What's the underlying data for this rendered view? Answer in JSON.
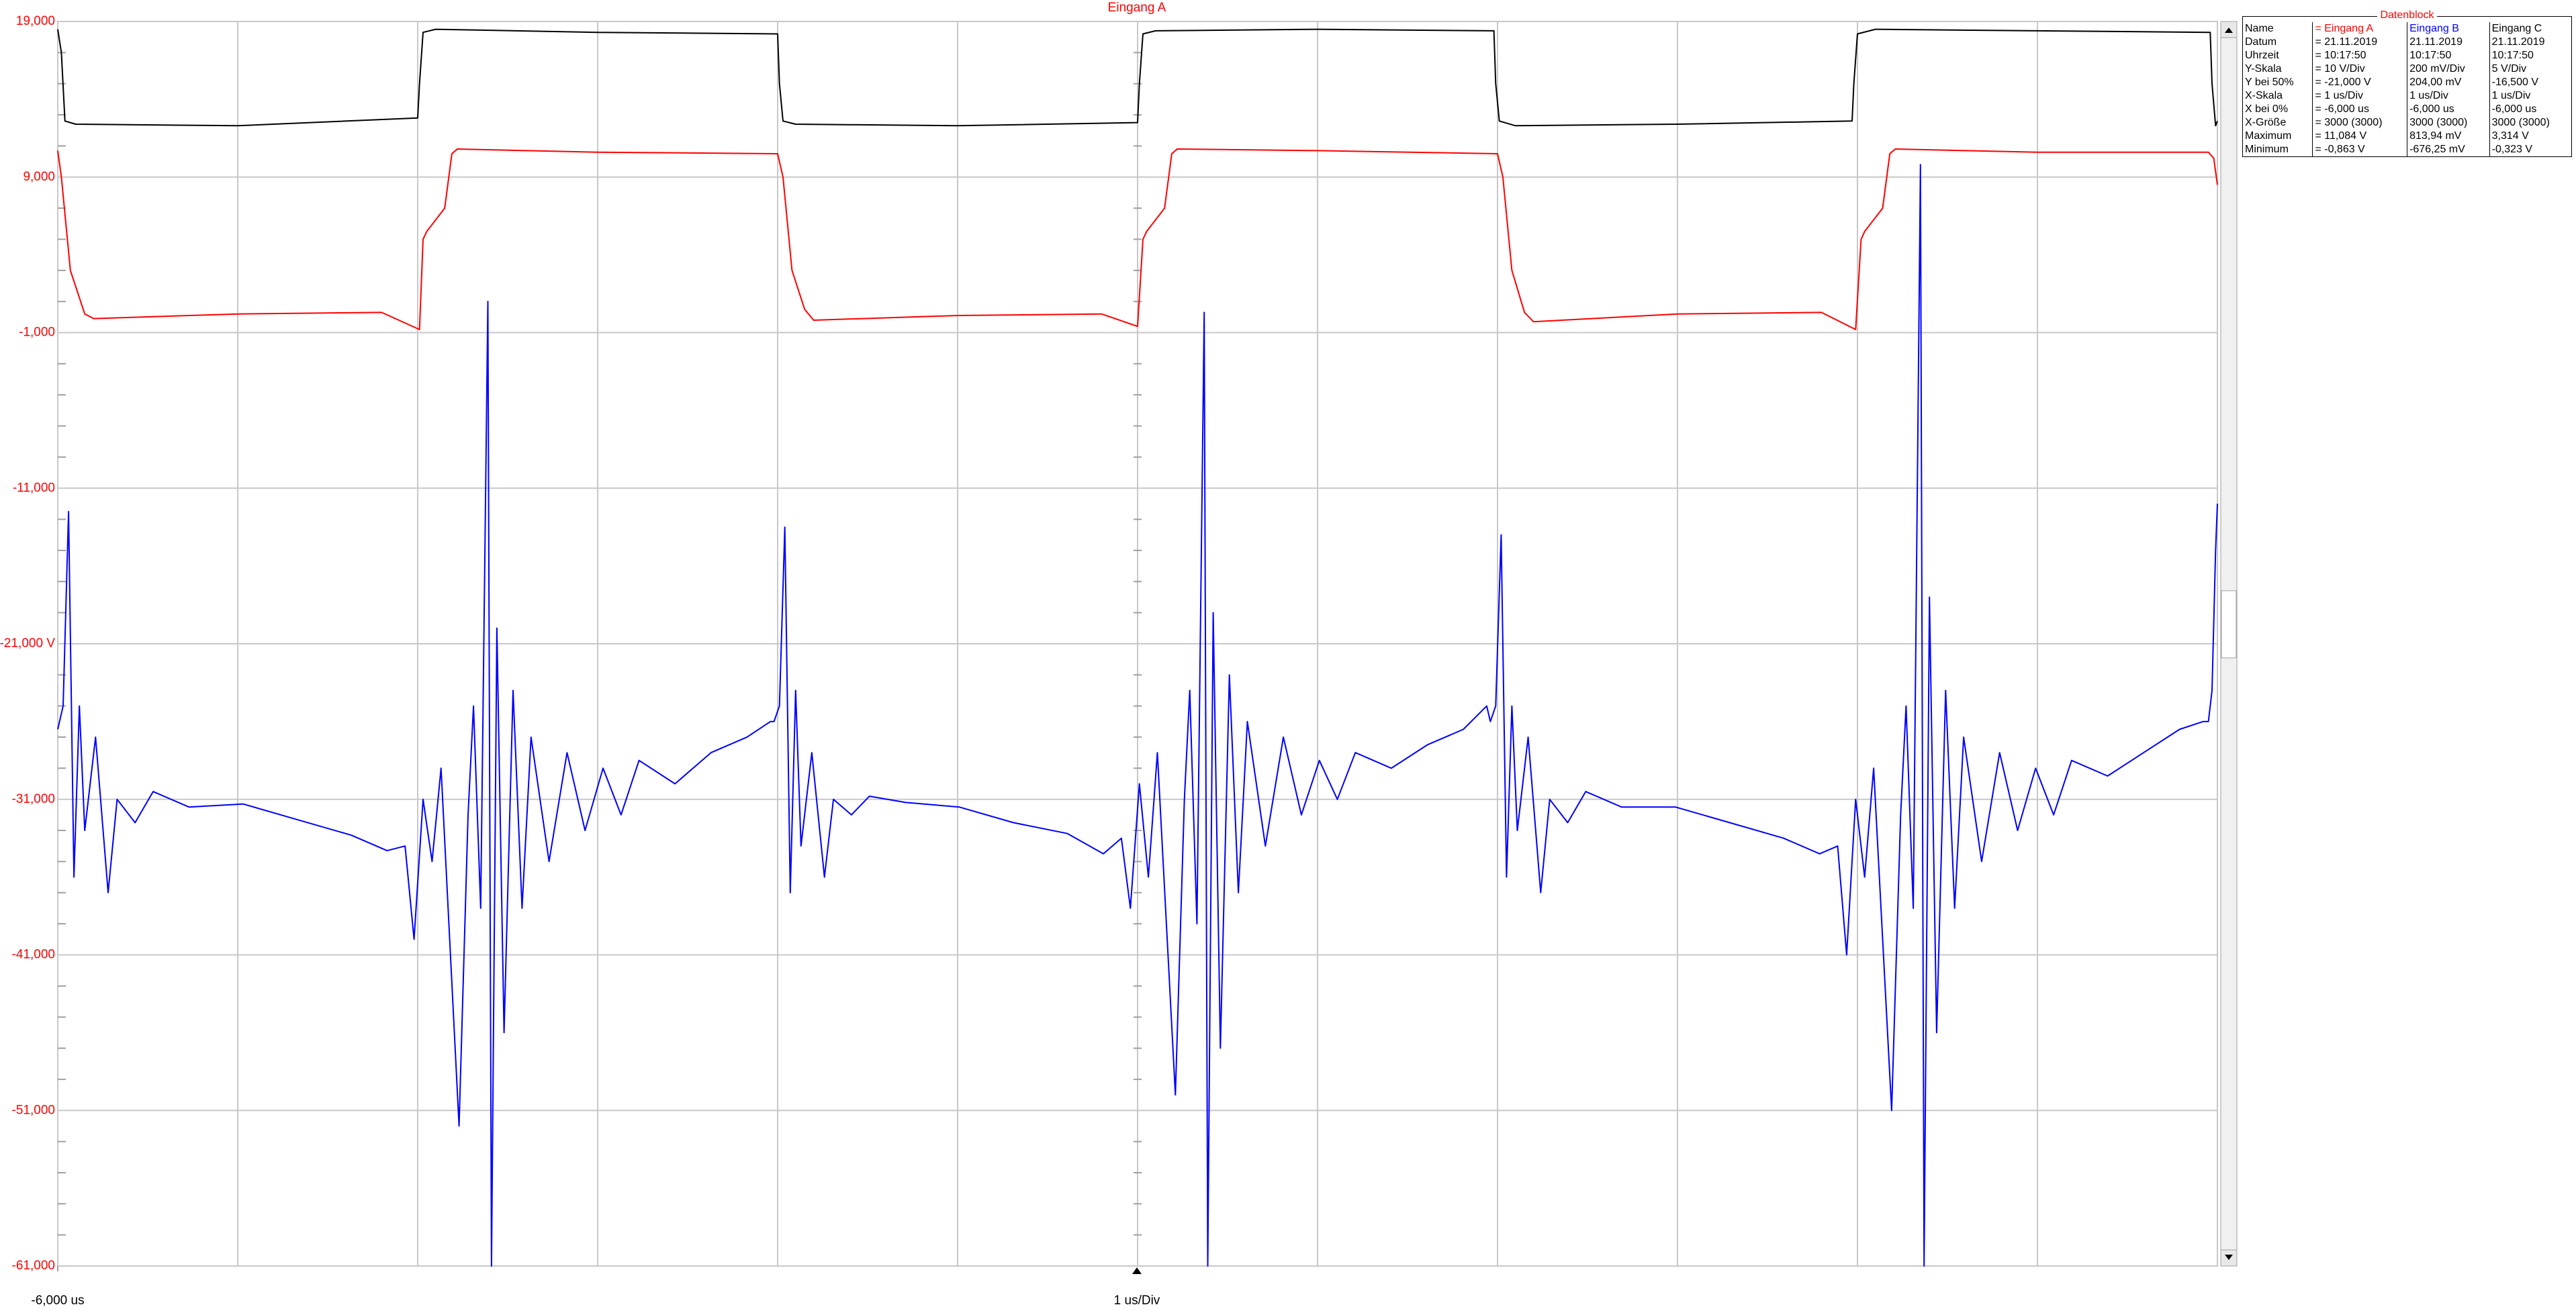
{
  "chart_data": {
    "type": "line",
    "title": "Eingang A",
    "xlabel": "1 us/Div",
    "xlim": [
      -6,
      6
    ],
    "xticks": [
      {
        "value": -6,
        "label": "-6,000 us"
      }
    ],
    "xgrid": [
      -6,
      -5,
      -4,
      -3,
      -2,
      -1,
      0,
      1,
      2,
      3,
      4,
      5,
      6
    ],
    "ylim": [
      -61,
      19
    ],
    "yticks": [
      {
        "value": 19,
        "label": "19,000"
      },
      {
        "value": 9,
        "label": "9,000"
      },
      {
        "value": -1,
        "label": "-1,000"
      },
      {
        "value": -11,
        "label": "-11,000"
      },
      {
        "value": -21,
        "label": "-21,000 V"
      },
      {
        "value": -31,
        "label": "-31,000"
      },
      {
        "value": -41,
        "label": "-41,000"
      },
      {
        "value": -51,
        "label": "-51,000"
      },
      {
        "value": -61,
        "label": "-61,000"
      }
    ],
    "grid": true,
    "tick_color": "#ff0000",
    "series": [
      {
        "name": "Eingang C",
        "color": "#000000",
        "x": [
          -6,
          -5.98,
          -5.96,
          -5.9,
          -5.0,
          -4.0,
          -3.99,
          -3.97,
          -3.9,
          -3.0,
          -2.0,
          -1.99,
          -1.97,
          -1.9,
          -1.0,
          0,
          0.01,
          0.03,
          0.1,
          1.0,
          1.98,
          1.99,
          2.01,
          2.1,
          3.0,
          3.97,
          3.98,
          4.0,
          4.1,
          5.0,
          5.96,
          5.97,
          5.99,
          6.0
        ],
        "values": [
          18.5,
          17,
          12.6,
          12.4,
          12.3,
          12.8,
          15,
          18.3,
          18.5,
          18.3,
          18.2,
          15,
          12.6,
          12.4,
          12.3,
          12.5,
          15,
          18.2,
          18.4,
          18.5,
          18.4,
          15,
          12.6,
          12.3,
          12.4,
          12.6,
          15,
          18.2,
          18.5,
          18.4,
          18.3,
          15,
          12.3,
          12.6
        ]
      },
      {
        "name": "Eingang A",
        "color": "#ff0000",
        "x": [
          -6,
          -5.98,
          -5.93,
          -5.85,
          -5.8,
          -5.0,
          -4.2,
          -3.99,
          -3.97,
          -3.95,
          -3.85,
          -3.81,
          -3.78,
          -3.0,
          -2.0,
          -1.97,
          -1.92,
          -1.85,
          -1.8,
          -1.0,
          -0.2,
          0.0,
          0.03,
          0.05,
          0.15,
          0.19,
          0.22,
          1.0,
          2.0,
          2.03,
          2.08,
          2.15,
          2.2,
          3.0,
          3.8,
          3.99,
          4.02,
          4.04,
          4.14,
          4.18,
          4.21,
          5.0,
          5.95,
          5.98,
          6.0
        ],
        "values": [
          10.7,
          9,
          3,
          0.2,
          -0.1,
          0.2,
          0.3,
          -0.8,
          5,
          5.5,
          7,
          10.5,
          10.8,
          10.6,
          10.5,
          9,
          3,
          0.5,
          -0.2,
          0.1,
          0.2,
          -0.6,
          5,
          5.5,
          7,
          10.5,
          10.8,
          10.7,
          10.5,
          9,
          3,
          0.3,
          -0.3,
          0.2,
          0.3,
          -0.8,
          5,
          5.5,
          7,
          10.5,
          10.8,
          10.6,
          10.6,
          10.2,
          8.5
        ]
      },
      {
        "name": "Eingang B",
        "color": "#0000ff",
        "x": [
          -6.0,
          -5.97,
          -5.94,
          -5.91,
          -5.88,
          -5.85,
          -5.79,
          -5.72,
          -5.67,
          -5.57,
          -5.47,
          -5.27,
          -4.97,
          -4.67,
          -4.37,
          -4.17,
          -4.07,
          -4.02,
          -3.97,
          -3.92,
          -3.87,
          -3.77,
          -3.72,
          -3.69,
          -3.65,
          -3.61,
          -3.59,
          -3.56,
          -3.52,
          -3.47,
          -3.42,
          -3.37,
          -3.27,
          -3.17,
          -3.07,
          -2.97,
          -2.87,
          -2.77,
          -2.57,
          -2.37,
          -2.17,
          -2.04,
          -2.02,
          -1.99,
          -1.96,
          -1.93,
          -1.9,
          -1.87,
          -1.81,
          -1.74,
          -1.69,
          -1.59,
          -1.49,
          -1.29,
          -0.99,
          -0.69,
          -0.39,
          -0.19,
          -0.09,
          -0.04,
          0.01,
          0.06,
          0.11,
          0.21,
          0.26,
          0.29,
          0.33,
          0.37,
          0.39,
          0.42,
          0.46,
          0.51,
          0.56,
          0.61,
          0.71,
          0.81,
          0.91,
          1.01,
          1.11,
          1.21,
          1.41,
          1.61,
          1.81,
          1.94,
          1.96,
          1.99,
          2.02,
          2.05,
          2.08,
          2.11,
          2.17,
          2.24,
          2.29,
          2.39,
          2.49,
          2.69,
          2.99,
          3.29,
          3.59,
          3.79,
          3.89,
          3.94,
          3.99,
          4.04,
          4.09,
          4.19,
          4.24,
          4.27,
          4.31,
          4.35,
          4.37,
          4.4,
          4.44,
          4.49,
          4.54,
          4.59,
          4.69,
          4.79,
          4.89,
          4.99,
          5.09,
          5.19,
          5.39,
          5.59,
          5.79,
          5.92,
          5.95,
          5.97,
          5.99,
          6.0
        ],
        "values": [
          -26.5,
          -25,
          -12.5,
          -36,
          -25,
          -33,
          -27,
          -37,
          -31,
          -32.5,
          -30.5,
          -31.5,
          -31.3,
          -32.3,
          -33.3,
          -34.3,
          -34,
          -40,
          -31,
          -35,
          -29,
          -52,
          -32,
          -25,
          -38,
          1,
          -61,
          -20,
          -46,
          -24,
          -38,
          -27,
          -35,
          -28,
          -33,
          -29,
          -32,
          -28.5,
          -30,
          -28,
          -27,
          -26,
          -26,
          -25,
          -13.5,
          -37,
          -24,
          -34,
          -28,
          -36,
          -31,
          -32,
          -30.8,
          -31.2,
          -31.5,
          -32.5,
          -33.2,
          -34.5,
          -33.5,
          -38,
          -30,
          -36,
          -28,
          -50,
          -31,
          -24,
          -39,
          0.3,
          -61,
          -19,
          -47,
          -23,
          -37,
          -26,
          -34,
          -27,
          -32,
          -28.5,
          -31,
          -28,
          -29,
          -27.5,
          -26.5,
          -25,
          -26,
          -25,
          -14,
          -36,
          -25,
          -33,
          -27,
          -37,
          -31,
          -32.5,
          -30.5,
          -31.5,
          -31.5,
          -32.5,
          -33.5,
          -34.5,
          -34,
          -41,
          -31,
          -36,
          -29,
          -51,
          -32,
          -25,
          -38,
          9.8,
          -61,
          -18,
          -46,
          -24,
          -38,
          -27,
          -35,
          -28,
          -33,
          -29,
          -32,
          -28.5,
          -29.5,
          -28,
          -26.5,
          -26,
          -26,
          -24,
          -15,
          -12
        ]
      }
    ]
  },
  "datablock": {
    "title": "Datenblock",
    "rows": [
      [
        "Name",
        "= Eingang A",
        "Eingang B",
        "Eingang C"
      ],
      [
        "Datum",
        "= 21.11.2019",
        "21.11.2019",
        "21.11.2019"
      ],
      [
        "Uhrzeit",
        "= 10:17:50",
        "10:17:50",
        "10:17:50"
      ],
      [
        "Y-Skala",
        "= 10 V/Div",
        "200 mV/Div",
        "5 V/Div"
      ],
      [
        "Y bei 50%",
        "= -21,000 V",
        "204,00 mV",
        "-16,500 V"
      ],
      [
        "X-Skala",
        "= 1 us/Div",
        "1 us/Div",
        "1 us/Div"
      ],
      [
        "X bei 0%",
        "= -6,000 us",
        "-6,000 us",
        "-6,000 us"
      ],
      [
        "X-Größe",
        "= 3000 (3000)",
        "3000 (3000)",
        "3000 (3000)"
      ],
      [
        "Maximum",
        "= 11,084 V",
        "813,94 mV",
        "3,314 V"
      ],
      [
        "Minimum",
        "= -0,863 V",
        "-676,25 mV",
        "-0,323 V"
      ]
    ],
    "header_colors": [
      "#000000",
      "#ff0000",
      "#0000ff",
      "#000000"
    ]
  }
}
